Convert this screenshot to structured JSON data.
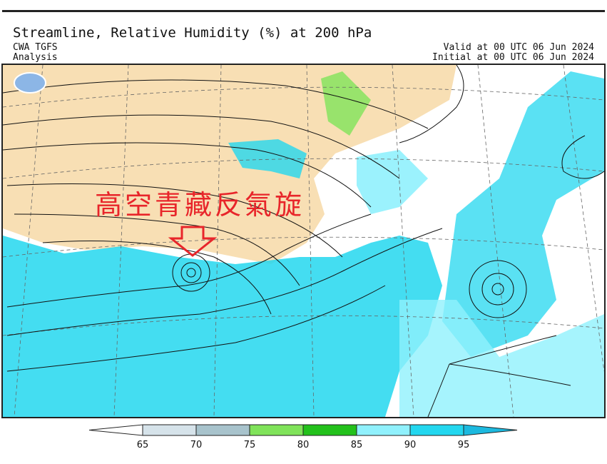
{
  "header": {
    "title": "Streamline, Relative Humidity (%) at 200 hPa",
    "model": "CWA TGFS",
    "kind": "Analysis",
    "valid": "Valid at 00 UTC 06 Jun 2024",
    "initial": "Initial at 00 UTC 06 Jun 2024"
  },
  "annotation": "高空青藏反氣旋",
  "colorbar": {
    "ticks": [
      65,
      70,
      75,
      80,
      85,
      90,
      95
    ],
    "colors": [
      "#d6e3ea",
      "#a8c3cc",
      "#80e35a",
      "#23c11b",
      "#90f1fd",
      "#23d7ef"
    ],
    "under_color": "#ffffff",
    "over_color": "#1cb9df"
  }
}
